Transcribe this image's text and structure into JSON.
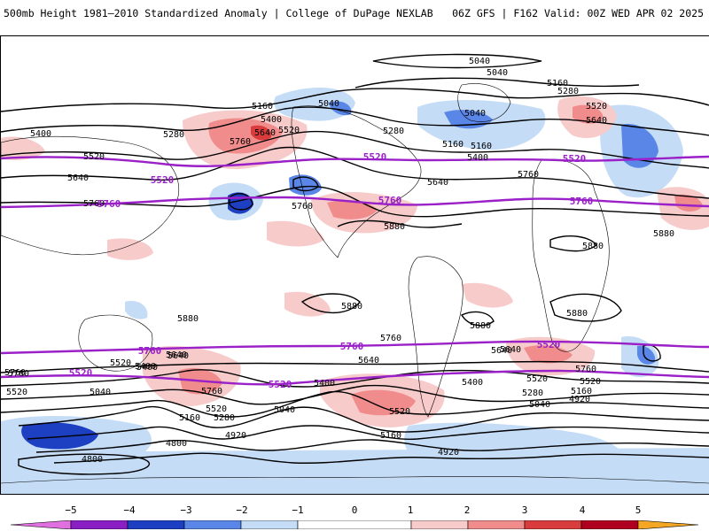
{
  "header": {
    "title": "500mb Height 1981–2010 Standardized Anomaly | College of DuPage NEXLAB",
    "run_info": "06Z GFS | F162 Valid: 00Z WED APR 02 2025"
  },
  "colors": {
    "neg5": "#e070e0",
    "neg4": "#8a1fc4",
    "neg3": "#1d3fc2",
    "neg2": "#5a86e8",
    "neg1": "#c4dcf6",
    "neutral": "#ffffff",
    "pos1": "#f8cbcb",
    "pos2": "#f08c8c",
    "pos3": "#d83c3c",
    "pos4": "#b00020",
    "pos5": "#f5a623",
    "contour": "#000000",
    "highlight": "#9a20c8",
    "coast": "#000000"
  },
  "map": {
    "contour_labels": [
      {
        "text": "5040"
      },
      {
        "text": "5040"
      },
      {
        "text": "5160"
      },
      {
        "text": "5280"
      },
      {
        "text": "5160"
      },
      {
        "text": "5400"
      },
      {
        "text": "5040"
      },
      {
        "text": "5040"
      },
      {
        "text": "5520"
      },
      {
        "text": "5640"
      },
      {
        "text": "5400"
      },
      {
        "text": "5520"
      },
      {
        "text": "5280"
      },
      {
        "text": "5640"
      },
      {
        "text": "5520"
      },
      {
        "text": "5760"
      },
      {
        "text": "5400"
      },
      {
        "text": "5280"
      },
      {
        "text": "5160"
      },
      {
        "text": "5760"
      },
      {
        "text": "5640"
      },
      {
        "text": "5640"
      },
      {
        "text": "5760"
      },
      {
        "text": "5880"
      },
      {
        "text": "5880"
      },
      {
        "text": "5880"
      },
      {
        "text": "5880"
      },
      {
        "text": "5880"
      },
      {
        "text": "5880"
      },
      {
        "text": "5880"
      },
      {
        "text": "5760"
      },
      {
        "text": "5640"
      },
      {
        "text": "5760"
      },
      {
        "text": "5640"
      },
      {
        "text": "5520"
      },
      {
        "text": "5400"
      },
      {
        "text": "5040"
      },
      {
        "text": "5400"
      },
      {
        "text": "5760"
      },
      {
        "text": "5520"
      },
      {
        "text": "5280"
      },
      {
        "text": "5160"
      },
      {
        "text": "4920"
      },
      {
        "text": "4800"
      },
      {
        "text": "4800"
      },
      {
        "text": "5040"
      },
      {
        "text": "5520"
      },
      {
        "text": "5400"
      },
      {
        "text": "5160"
      },
      {
        "text": "4920"
      },
      {
        "text": "5760"
      },
      {
        "text": "5640"
      },
      {
        "text": "5520"
      },
      {
        "text": "5160"
      },
      {
        "text": "5280"
      },
      {
        "text": "5040"
      },
      {
        "text": "4920"
      },
      {
        "text": "5640"
      },
      {
        "text": "5400"
      },
      {
        "text": "5760"
      },
      {
        "text": "5520"
      },
      {
        "text": "5760"
      },
      {
        "text": "5520"
      },
      {
        "text": "5640"
      },
      {
        "text": "5160"
      }
    ],
    "highlight_labels": [
      {
        "text": "5520"
      },
      {
        "text": "5520"
      },
      {
        "text": "5520"
      },
      {
        "text": "5760"
      },
      {
        "text": "5760"
      },
      {
        "text": "5760"
      },
      {
        "text": "5760"
      },
      {
        "text": "5760"
      },
      {
        "text": "5520"
      },
      {
        "text": "5520"
      },
      {
        "text": "5520"
      }
    ]
  },
  "colorbar": {
    "ticks": [
      "−5",
      "−4",
      "−3",
      "−2",
      "−1",
      "0",
      "1",
      "2",
      "3",
      "4",
      "5"
    ]
  }
}
